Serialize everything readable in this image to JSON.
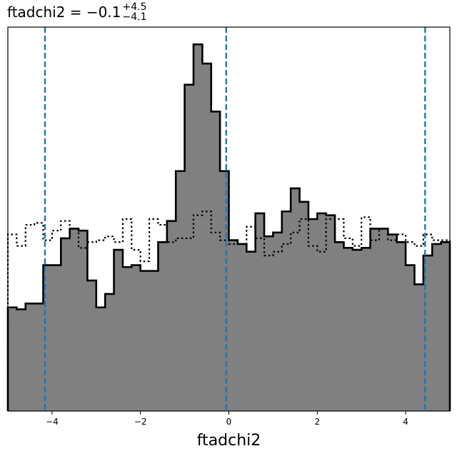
{
  "chart_data": {
    "type": "histogram",
    "title": {
      "prefix": "ftadchi2 = −0.1",
      "sup": "+4.5",
      "sub": "−4.1"
    },
    "xlabel": "ftadchi2",
    "ylabel": "",
    "xlim": [
      -5,
      5
    ],
    "ylim": [
      0,
      1.0
    ],
    "xticks": [
      -4,
      -2,
      0,
      2,
      4
    ],
    "xtick_labels": [
      "−4",
      "−2",
      "0",
      "2",
      "4"
    ],
    "y_ticks_visible": false,
    "bin_edges": [
      -5.0,
      -4.8,
      -4.6,
      -4.4,
      -4.2,
      -4.0,
      -3.8,
      -3.6,
      -3.4,
      -3.2,
      -3.0,
      -2.8,
      -2.6,
      -2.4,
      -2.2,
      -2.0,
      -1.8,
      -1.6,
      -1.4,
      -1.2,
      -1.0,
      -0.8,
      -0.6,
      -0.4,
      -0.2,
      0.0,
      0.2,
      0.4,
      0.6,
      0.8,
      1.0,
      1.2,
      1.4,
      1.6,
      1.8,
      2.0,
      2.2,
      2.4,
      2.6,
      2.8,
      3.0,
      3.2,
      3.4,
      3.6,
      3.8,
      4.0,
      4.2,
      4.4,
      4.6,
      4.8,
      5.0
    ],
    "series": [
      {
        "style": "filled-step",
        "fill": "#808080",
        "edge": "#000000",
        "values": [
          0.27,
          0.265,
          0.28,
          0.28,
          0.38,
          0.38,
          0.45,
          0.475,
          0.47,
          0.34,
          0.27,
          0.305,
          0.42,
          0.375,
          0.38,
          0.365,
          0.365,
          0.44,
          0.495,
          0.625,
          0.85,
          0.955,
          0.905,
          0.78,
          0.625,
          0.445,
          0.435,
          0.415,
          0.515,
          0.455,
          0.465,
          0.52,
          0.58,
          0.545,
          0.5,
          0.515,
          0.51,
          0.44,
          0.425,
          0.42,
          0.425,
          0.475,
          0.475,
          0.46,
          0.44,
          0.38,
          0.33,
          0.405,
          0.435,
          0.44
        ]
      },
      {
        "style": "dotted-step",
        "edge": "#000000",
        "values": [
          0.46,
          0.43,
          0.485,
          0.49,
          0.445,
          0.47,
          0.495,
          0.475,
          0.425,
          0.44,
          0.445,
          0.455,
          0.44,
          0.5,
          0.42,
          0.39,
          0.5,
          0.485,
          0.44,
          0.45,
          0.45,
          0.51,
          0.52,
          0.465,
          0.445,
          0.435,
          0.435,
          0.48,
          0.45,
          0.405,
          0.415,
          0.435,
          0.465,
          0.5,
          0.43,
          0.415,
          0.5,
          0.5,
          0.45,
          0.43,
          0.505,
          0.445,
          0.475,
          0.445,
          0.46,
          0.44,
          0.43,
          0.46,
          0.445,
          0.445
        ]
      }
    ],
    "vlines": [
      {
        "x": -4.16,
        "color": "#1f77b4",
        "style": "dashed"
      },
      {
        "x": -0.06,
        "color": "#1f77b4",
        "style": "dashed"
      },
      {
        "x": 4.44,
        "color": "#1f77b4",
        "style": "dashed"
      }
    ]
  }
}
